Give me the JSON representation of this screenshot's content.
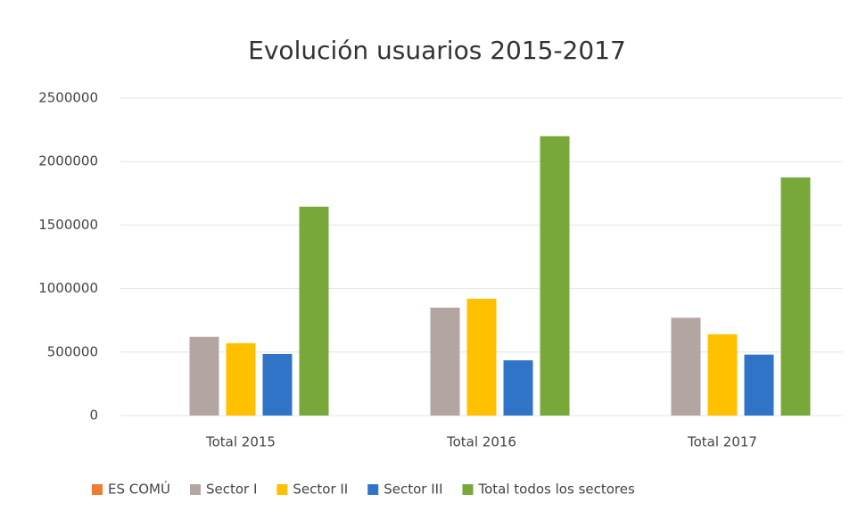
{
  "chart_data": {
    "type": "bar",
    "title": "Evolución usuarios 2015-2017",
    "categories": [
      "Total 2015",
      "Total 2016",
      "Total 2017"
    ],
    "series": [
      {
        "name": "ES COMÚ",
        "color": "#ed7d31",
        "values": [
          0,
          0,
          0
        ]
      },
      {
        "name": "Sector I",
        "color": "#b3a6a2",
        "values": [
          620000,
          850000,
          770000
        ]
      },
      {
        "name": "Sector II",
        "color": "#ffc000",
        "values": [
          570000,
          920000,
          640000
        ]
      },
      {
        "name": "Sector III",
        "color": "#2f74c6",
        "values": [
          485000,
          435000,
          480000
        ]
      },
      {
        "name": "Total todos los sectores",
        "color": "#78a83a",
        "values": [
          1645000,
          2200000,
          1875000
        ]
      }
    ],
    "ylim": [
      0,
      2500000
    ],
    "yticks": [
      0,
      500000,
      1000000,
      1500000,
      2000000,
      2500000
    ],
    "grid": true,
    "legend": "bottom"
  }
}
